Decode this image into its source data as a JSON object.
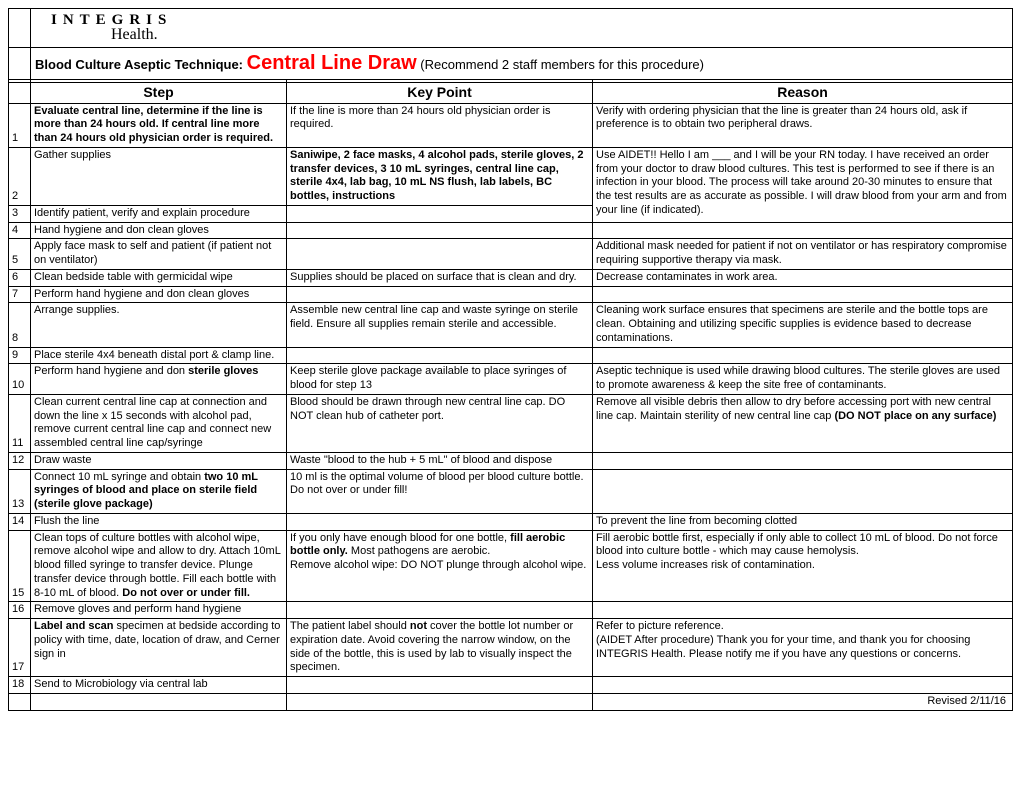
{
  "logo": {
    "top": "INTEGRIS",
    "bottom": "Health."
  },
  "title": {
    "prefix": "Blood Culture Aseptic Technique: ",
    "main": "Central Line Draw",
    "suffix": " (Recommend 2 staff members for this procedure)"
  },
  "headers": {
    "step": "Step",
    "keypoint": "Key Point",
    "reason": "Reason"
  },
  "rows": [
    {
      "n": "1",
      "step": "<b>Evaluate central line, determine if the line is more than 24 hours old. If central line more than 24 hours old physician order is required.</b>",
      "kp": "If the line is more than 24 hours old physician order is required.",
      "reason": "Verify with ordering physician that the line is greater than 24 hours old, ask if preference is to obtain two peripheral draws."
    },
    {
      "n": "2",
      "step": "Gather supplies",
      "kp": "<b>Saniwipe, 2 face masks, 4 alcohol pads, sterile gloves, 2 transfer devices, 3 10 mL syringes, central line cap, sterile 4x4, lab bag, 10 mL NS flush, lab labels, BC bottles, instructions</b>",
      "reason_rowspan": 2,
      "reason": "Use AIDET!! Hello I am ___ and I will be your RN today.  I have received an order from your doctor to draw blood cultures.  This test is performed to see if there is an infection in your blood.  The process will take around 20-30 minutes to ensure that the test results are as accurate as possible.  I will draw blood from your arm and from your line (if indicated)."
    },
    {
      "n": "3",
      "step": "Identify patient, verify and explain procedure",
      "kp": "",
      "reason_skip": true
    },
    {
      "n": "4",
      "step": "Hand hygiene and don clean gloves",
      "kp": "",
      "reason": ""
    },
    {
      "n": "5",
      "step": "Apply face mask to self and patient (if patient not on ventilator)",
      "kp": "",
      "reason": "Additional mask needed for patient if not on ventilator or has respiratory compromise requiring supportive therapy via mask."
    },
    {
      "n": "6",
      "step": "Clean bedside table with germicidal wipe",
      "kp": "Supplies should be placed on surface that is clean and dry.",
      "reason": "Decrease contaminates in work area."
    },
    {
      "n": "7",
      "step": "Perform hand hygiene and don clean gloves",
      "kp": "",
      "reason": ""
    },
    {
      "n": "8",
      "step": "Arrange supplies.",
      "kp": "Assemble new central line cap and waste syringe on sterile field. Ensure all supplies remain sterile and accessible.",
      "reason": "Cleaning work surface ensures that specimens are sterile and the bottle tops are clean. Obtaining and utilizing specific supplies is evidence based to decrease contaminations."
    },
    {
      "n": "9",
      "step": "Place sterile 4x4 beneath distal port & clamp line.",
      "kp": "",
      "reason": ""
    },
    {
      "n": "10",
      "step": "Perform hand hygiene and don <b>sterile gloves</b>",
      "kp": "Keep sterile glove package available to place syringes of blood for step 13",
      "reason": "Aseptic technique is used while drawing blood cultures. The sterile gloves are used to promote awareness & keep the site free of contaminants."
    },
    {
      "n": "11",
      "step": "Clean current central line cap at connection and down the line x 15 seconds with alcohol pad, remove current central line cap and connect new assembled central line cap/syringe",
      "kp": "Blood should be drawn through new central line cap. DO NOT clean hub of catheter port.",
      "reason": "Remove all visible debris then allow to dry before accessing port with new central line cap. Maintain sterility of new central line cap <b>(DO NOT place on any surface)</b>"
    },
    {
      "n": "12",
      "step": "Draw waste",
      "kp": "Waste \"blood to the hub + 5 mL\" of blood and dispose",
      "reason": ""
    },
    {
      "n": "13",
      "step": "Connect 10 mL syringe and obtain <b>two 10 mL syringes of blood and place on sterile field (sterile glove package)</b>",
      "kp": "10 ml is the optimal volume of blood per blood culture bottle. Do not over or under fill!",
      "reason": ""
    },
    {
      "n": "14",
      "step": "Flush the line",
      "kp": "",
      "reason": "To prevent the line from becoming clotted"
    },
    {
      "n": "15",
      "step": "Clean tops of culture bottles with alcohol wipe, remove alcohol wipe and allow to dry. Attach 10mL blood filled syringe to transfer device. Plunge transfer device through bottle. Fill each bottle with 8-10 mL of blood. <b>Do not over or under fill.</b>",
      "kp": "If you only have enough blood for one bottle, <b>fill aerobic bottle only.</b> Most pathogens are aerobic.<br>Remove alcohol wipe: DO NOT plunge through alcohol wipe.",
      "reason": "Fill aerobic bottle first, especially if only able to collect 10 mL of blood.  Do not force blood into culture bottle - which may cause hemolysis.<br>Less volume increases risk of contamination."
    },
    {
      "n": "16",
      "step": "Remove gloves and perform hand hygiene",
      "kp": "",
      "reason": ""
    },
    {
      "n": "17",
      "step": "<b>Label and scan</b> specimen at bedside according to policy with time, date, location of draw, and Cerner sign in",
      "kp": "The patient label should <b>not</b> cover the bottle lot number or expiration date. Avoid covering the narrow window, on the side of the bottle, this is used by lab to visually inspect the specimen.",
      "reason": "Refer to picture reference.<br>(AIDET After procedure) Thank you for your time, and thank you for choosing INTEGRIS Health. Please notify me if you have any questions or concerns."
    },
    {
      "n": "18",
      "step": "Send to Microbiology via central lab",
      "kp": "",
      "reason": ""
    }
  ],
  "revised": "Revised 2/11/16"
}
